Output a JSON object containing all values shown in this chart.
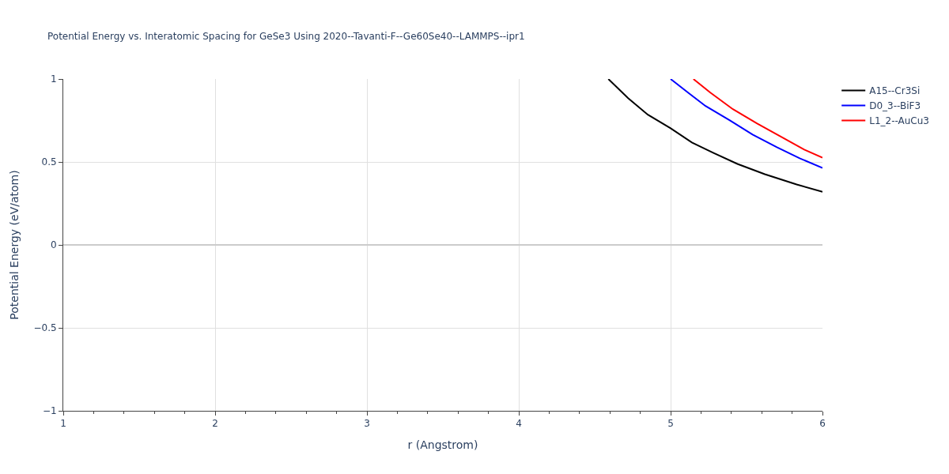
{
  "chart_data": {
    "type": "line",
    "title": "Potential Energy vs. Interatomic Spacing for GeSe3 Using 2020--Tavanti-F--Ge60Se40--LAMMPS--ipr1",
    "xlabel": "r (Angstrom)",
    "ylabel": "Potential Energy (eV/atom)",
    "xlim": [
      1,
      6
    ],
    "ylim": [
      -1,
      1
    ],
    "xticks": [
      1,
      {
        "value": 1.2,
        "label": null
      },
      {
        "value": 1.4,
        "label": null
      },
      {
        "value": 1.6,
        "label": null
      },
      {
        "value": 1.8,
        "label": null
      },
      2,
      {
        "value": 2.2,
        "label": null
      },
      {
        "value": 2.4,
        "label": null
      },
      {
        "value": 2.6,
        "label": null
      },
      {
        "value": 2.8,
        "label": null
      },
      3,
      {
        "value": 3.2,
        "label": null
      },
      {
        "value": 3.4,
        "label": null
      },
      {
        "value": 3.6,
        "label": null
      },
      {
        "value": 3.8,
        "label": null
      },
      4,
      {
        "value": 4.2,
        "label": null
      },
      {
        "value": 4.4,
        "label": null
      },
      {
        "value": 4.6,
        "label": null
      },
      {
        "value": 4.8,
        "label": null
      },
      5,
      {
        "value": 5.2,
        "label": null
      },
      {
        "value": 5.4,
        "label": null
      },
      {
        "value": 5.6,
        "label": null
      },
      {
        "value": 5.8,
        "label": null
      },
      6
    ],
    "yticks": [
      {
        "value": -1,
        "label": "−1"
      },
      {
        "value": -0.5,
        "label": "−0.5"
      },
      0,
      0.5,
      1
    ],
    "grid": true,
    "legend": "top right",
    "marker": "none",
    "line_style": "solid",
    "series": [
      {
        "name": "A15--Cr3Si",
        "color": "#000000",
        "x": [
          4.59,
          4.72,
          4.85,
          5.0,
          5.14,
          5.28,
          5.44,
          5.62,
          5.83,
          6.0
        ],
        "values": [
          1.0,
          0.885,
          0.785,
          0.703,
          0.617,
          0.555,
          0.488,
          0.426,
          0.364,
          0.32
        ]
      },
      {
        "name": "D0_3--BiF3",
        "color": "#0000ff",
        "x": [
          5.0,
          5.12,
          5.23,
          5.39,
          5.54,
          5.7,
          5.85,
          6.0
        ],
        "values": [
          1.0,
          0.914,
          0.837,
          0.751,
          0.665,
          0.589,
          0.522,
          0.464
        ]
      },
      {
        "name": "L1_2--AuCu3",
        "color": "#ff0000",
        "x": [
          5.15,
          5.26,
          5.41,
          5.57,
          5.73,
          5.88,
          6.0
        ],
        "values": [
          1.0,
          0.919,
          0.818,
          0.732,
          0.651,
          0.574,
          0.526
        ]
      }
    ]
  }
}
